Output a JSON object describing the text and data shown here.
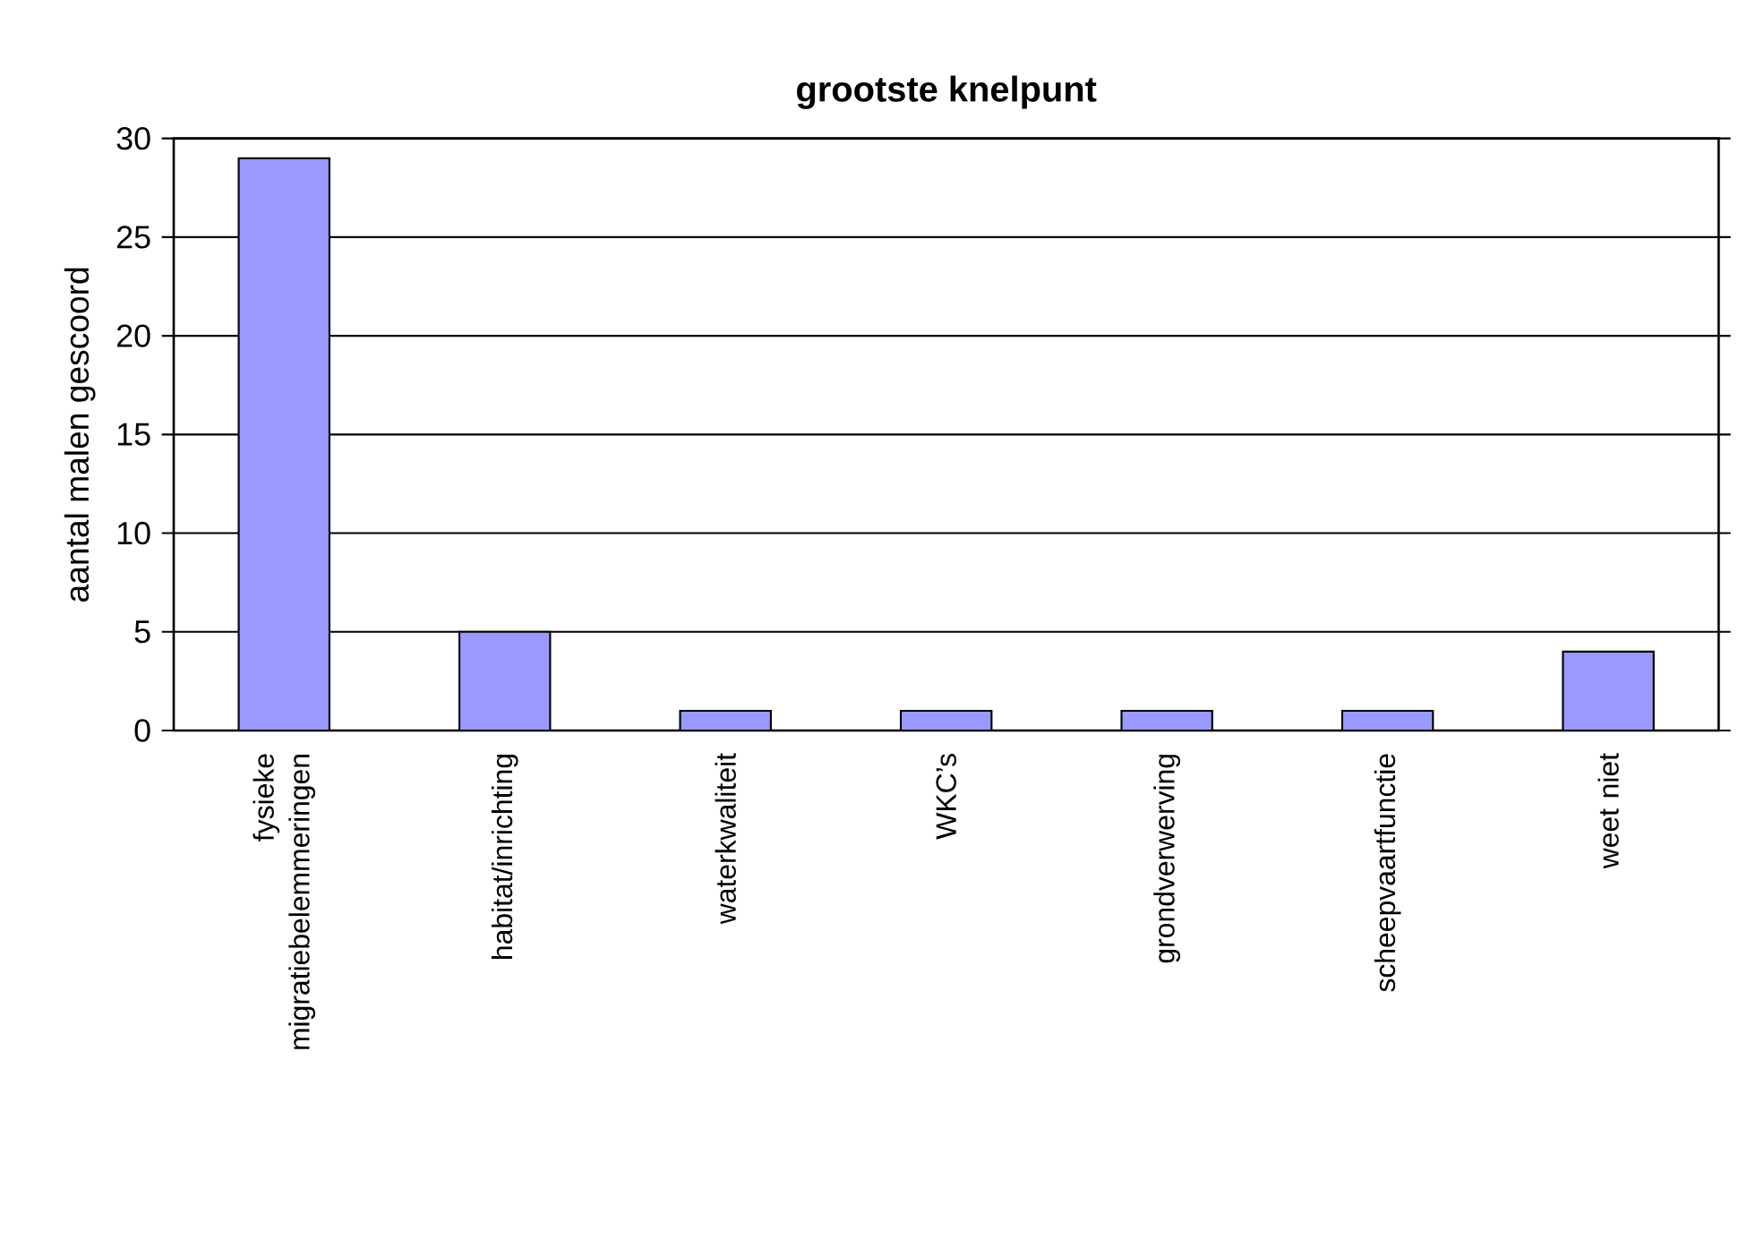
{
  "chart_data": {
    "type": "bar",
    "title": "grootste knelpunt",
    "ylabel": "aantal malen gescoord",
    "categories": [
      "fysieke migratiebelemmeringen",
      "habitat/inrichting",
      "waterkwaliteit",
      "WKC’s",
      "grondverwerving",
      "scheepvaartfunctie",
      "weet niet"
    ],
    "values": [
      29,
      5,
      1,
      1,
      1,
      1,
      4
    ],
    "color": "#9999ff",
    "ylim": [
      0,
      30
    ],
    "yticks": [
      0,
      5,
      10,
      15,
      20,
      25,
      30
    ],
    "grid": "y"
  }
}
